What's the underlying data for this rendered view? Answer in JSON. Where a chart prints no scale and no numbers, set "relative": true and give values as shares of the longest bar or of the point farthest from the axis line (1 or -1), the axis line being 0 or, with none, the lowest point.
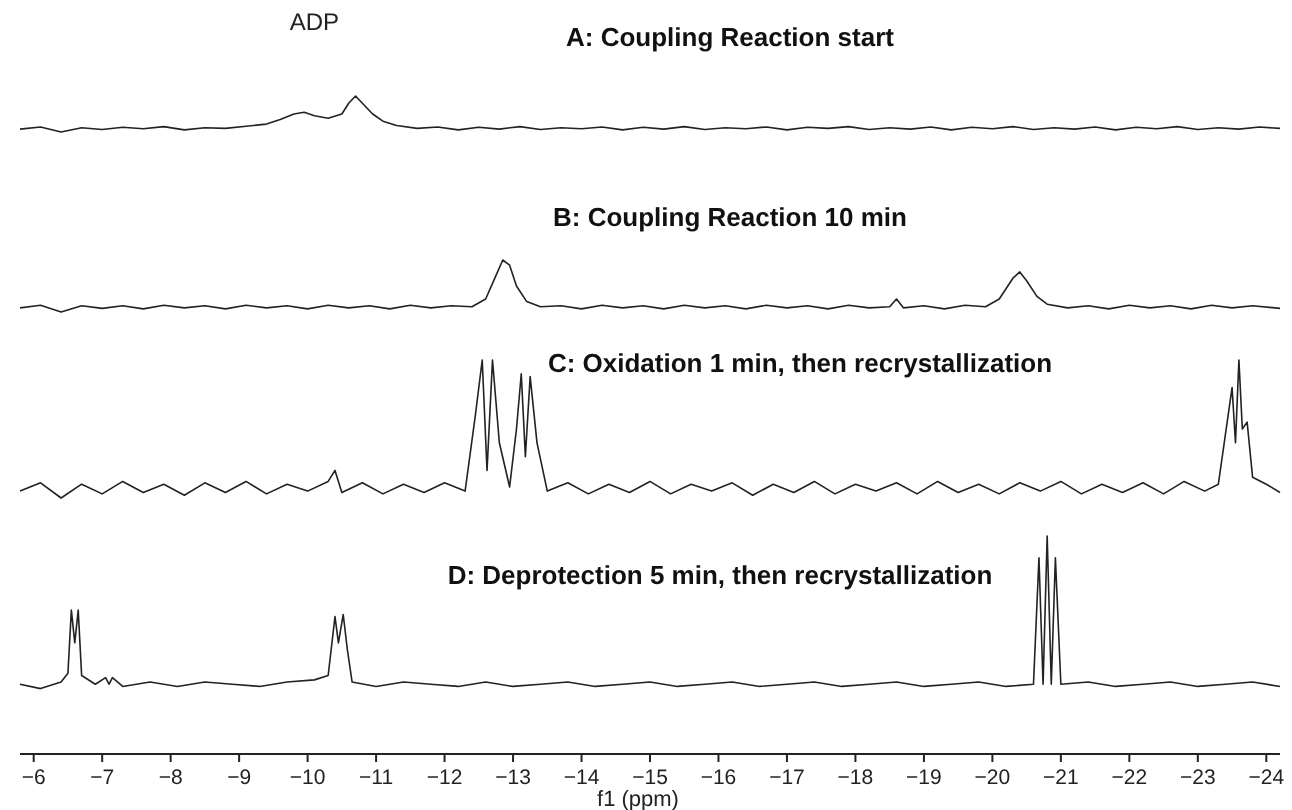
{
  "chart_data": [
    {
      "type": "line",
      "title": "A: Coupling Reaction start",
      "relative": true,
      "xticks": [
        -6,
        -24
      ],
      "tick_labels": false,
      "grid": false,
      "marker": "none",
      "line_style": "solid",
      "annotations": [
        "ADP"
      ],
      "series": [
        {
          "color": "#222222",
          "x": [
            -5.8,
            -6.1,
            -6.4,
            -6.7,
            -7.0,
            -7.3,
            -7.6,
            -7.9,
            -8.2,
            -8.5,
            -8.8,
            -9.1,
            -9.4,
            -9.6,
            -9.8,
            -9.95,
            -10.1,
            -10.3,
            -10.5,
            -10.6,
            -10.7,
            -10.8,
            -10.95,
            -11.1,
            -11.3,
            -11.6,
            -11.9,
            -12.2,
            -12.5,
            -12.8,
            -13.1,
            -13.4,
            -13.7,
            -14.0,
            -14.3,
            -14.6,
            -14.9,
            -15.2,
            -15.5,
            -15.8,
            -16.1,
            -16.4,
            -16.7,
            -17.0,
            -17.3,
            -17.6,
            -17.9,
            -18.2,
            -18.5,
            -18.8,
            -19.1,
            -19.4,
            -19.7,
            -20.0,
            -20.3,
            -20.6,
            -20.9,
            -21.2,
            -21.5,
            -21.8,
            -22.1,
            -22.4,
            -22.7,
            -23.0,
            -23.3,
            -23.6,
            -23.9,
            -24.2
          ],
          "values": [
            0.08,
            0.14,
            0,
            0.12,
            0.07,
            0.13,
            0.09,
            0.15,
            0.06,
            0.12,
            0.1,
            0.16,
            0.22,
            0.35,
            0.5,
            0.55,
            0.45,
            0.38,
            0.5,
            0.8,
            1,
            0.8,
            0.5,
            0.3,
            0.18,
            0.1,
            0.14,
            0.06,
            0.13,
            0.08,
            0.15,
            0.07,
            0.12,
            0.09,
            0.14,
            0.06,
            0.13,
            0.08,
            0.15,
            0.07,
            0.12,
            0.09,
            0.14,
            0.06,
            0.13,
            0.1,
            0.15,
            0.07,
            0.12,
            0.08,
            0.14,
            0.06,
            0.13,
            0.09,
            0.15,
            0.07,
            0.12,
            0.08,
            0.14,
            0.06,
            0.13,
            0.09,
            0.15,
            0.07,
            0.12,
            0.08,
            0.14,
            0.1
          ]
        }
      ]
    },
    {
      "type": "line",
      "title": "B: Coupling Reaction 10 min",
      "relative": true,
      "xticks": [
        -6,
        -24
      ],
      "tick_labels": false,
      "grid": false,
      "marker": "none",
      "line_style": "solid",
      "series": [
        {
          "color": "#222222",
          "x": [
            -5.8,
            -6.1,
            -6.4,
            -6.7,
            -7.0,
            -7.3,
            -7.6,
            -7.9,
            -8.2,
            -8.5,
            -8.8,
            -9.1,
            -9.4,
            -9.7,
            -10.0,
            -10.3,
            -10.6,
            -10.9,
            -11.2,
            -11.5,
            -11.8,
            -12.1,
            -12.4,
            -12.6,
            -12.75,
            -12.85,
            -12.95,
            -13.05,
            -13.2,
            -13.4,
            -13.7,
            -14.0,
            -14.3,
            -14.6,
            -14.9,
            -15.2,
            -15.5,
            -15.8,
            -16.1,
            -16.4,
            -16.7,
            -17.0,
            -17.3,
            -17.6,
            -17.9,
            -18.2,
            -18.5,
            -18.6,
            -18.7,
            -19.0,
            -19.3,
            -19.6,
            -19.9,
            -20.1,
            -20.3,
            -20.4,
            -20.5,
            -20.65,
            -20.8,
            -21.1,
            -21.4,
            -21.7,
            -22.0,
            -22.3,
            -22.6,
            -22.9,
            -23.2,
            -23.5,
            -23.8,
            -24.2
          ],
          "values": [
            0.08,
            0.13,
            0,
            0.12,
            0.07,
            0.12,
            0.06,
            0.13,
            0.08,
            0.12,
            0.06,
            0.13,
            0.08,
            0.12,
            0.06,
            0.13,
            0.08,
            0.12,
            0.06,
            0.13,
            0.08,
            0.12,
            0.1,
            0.25,
            0.7,
            1,
            0.9,
            0.5,
            0.2,
            0.1,
            0.12,
            0.06,
            0.13,
            0.08,
            0.12,
            0.06,
            0.13,
            0.08,
            0.12,
            0.06,
            0.13,
            0.08,
            0.12,
            0.06,
            0.13,
            0.08,
            0.1,
            0.25,
            0.08,
            0.12,
            0.06,
            0.13,
            0.1,
            0.25,
            0.65,
            0.77,
            0.6,
            0.3,
            0.15,
            0.08,
            0.12,
            0.06,
            0.13,
            0.08,
            0.12,
            0.06,
            0.13,
            0.08,
            0.12,
            0.07
          ]
        }
      ]
    },
    {
      "type": "line",
      "title": "C: Oxidation 1 min, then recrystallization",
      "relative": true,
      "xticks": [
        -6,
        -24
      ],
      "tick_labels": false,
      "grid": false,
      "marker": "none",
      "line_style": "solid",
      "series": [
        {
          "color": "#222222",
          "x": [
            -5.8,
            -6.1,
            -6.4,
            -6.7,
            -7.0,
            -7.3,
            -7.6,
            -7.9,
            -8.2,
            -8.5,
            -8.8,
            -9.1,
            -9.4,
            -9.7,
            -10.0,
            -10.3,
            -10.4,
            -10.5,
            -10.8,
            -11.1,
            -11.4,
            -11.7,
            -12.0,
            -12.3,
            -12.45,
            -12.55,
            -12.62,
            -12.7,
            -12.8,
            -12.95,
            -13.05,
            -13.12,
            -13.18,
            -13.25,
            -13.35,
            -13.5,
            -13.8,
            -14.1,
            -14.4,
            -14.7,
            -15.0,
            -15.3,
            -15.6,
            -15.9,
            -16.2,
            -16.5,
            -16.8,
            -17.1,
            -17.4,
            -17.7,
            -18.0,
            -18.3,
            -18.6,
            -18.9,
            -19.2,
            -19.5,
            -19.8,
            -20.1,
            -20.4,
            -20.7,
            -21.0,
            -21.3,
            -21.6,
            -21.9,
            -22.2,
            -22.5,
            -22.8,
            -23.1,
            -23.3,
            -23.4,
            -23.5,
            -23.55,
            -23.6,
            -23.65,
            -23.72,
            -23.8,
            -24.0,
            -24.2
          ],
          "values": [
            0.05,
            0.11,
            0,
            0.1,
            0.03,
            0.12,
            0.04,
            0.1,
            0.02,
            0.11,
            0.04,
            0.12,
            0.03,
            0.1,
            0.05,
            0.12,
            0.2,
            0.04,
            0.11,
            0.03,
            0.1,
            0.04,
            0.11,
            0.05,
            0.6,
            1,
            0.2,
            1,
            0.4,
            0.08,
            0.5,
            0.9,
            0.3,
            0.88,
            0.4,
            0.05,
            0.11,
            0.03,
            0.1,
            0.04,
            0.12,
            0.03,
            0.1,
            0.05,
            0.11,
            0.02,
            0.1,
            0.04,
            0.12,
            0.03,
            0.1,
            0.05,
            0.11,
            0.03,
            0.12,
            0.04,
            0.1,
            0.03,
            0.11,
            0.05,
            0.12,
            0.03,
            0.1,
            0.04,
            0.11,
            0.03,
            0.12,
            0.05,
            0.1,
            0.45,
            0.8,
            0.4,
            1,
            0.5,
            0.55,
            0.15,
            0.1,
            0.04
          ]
        }
      ]
    },
    {
      "type": "line",
      "title": "D: Deprotection 5 min, then recrystallization",
      "xlabel": "f1 (ppm)",
      "relative": true,
      "xlim": [
        -5.8,
        -24.2
      ],
      "xticks": [
        -6,
        -7,
        -8,
        -9,
        -10,
        -11,
        -12,
        -13,
        -14,
        -15,
        -16,
        -17,
        -18,
        -19,
        -20,
        -21,
        -22,
        -23,
        -24
      ],
      "tick_labels": "x",
      "grid": false,
      "marker": "none",
      "line_style": "solid",
      "series": [
        {
          "color": "#222222",
          "x": [
            -5.8,
            -6.1,
            -6.4,
            -6.5,
            -6.55,
            -6.6,
            -6.65,
            -6.7,
            -6.9,
            -7.05,
            -7.1,
            -7.15,
            -7.3,
            -7.7,
            -8.1,
            -8.5,
            -8.9,
            -9.3,
            -9.7,
            -10.1,
            -10.3,
            -10.4,
            -10.45,
            -10.52,
            -10.58,
            -10.65,
            -11.0,
            -11.4,
            -11.8,
            -12.2,
            -12.6,
            -13.0,
            -13.4,
            -13.8,
            -14.2,
            -14.6,
            -15.0,
            -15.4,
            -15.8,
            -16.2,
            -16.6,
            -17.0,
            -17.4,
            -17.8,
            -18.2,
            -18.6,
            -19.0,
            -19.4,
            -19.8,
            -20.2,
            -20.6,
            -20.68,
            -20.74,
            -20.8,
            -20.86,
            -20.92,
            -21.0,
            -21.4,
            -21.8,
            -22.2,
            -22.6,
            -23.0,
            -23.4,
            -23.8,
            -24.2
          ],
          "values": [
            0.32,
            0.3,
            0.33,
            0.37,
            0.66,
            0.51,
            0.66,
            0.36,
            0.32,
            0.35,
            0.32,
            0.35,
            0.31,
            0.33,
            0.31,
            0.33,
            0.32,
            0.31,
            0.33,
            0.34,
            0.36,
            0.63,
            0.51,
            0.64,
            0.48,
            0.33,
            0.31,
            0.33,
            0.32,
            0.31,
            0.33,
            0.31,
            0.32,
            0.33,
            0.31,
            0.32,
            0.33,
            0.31,
            0.32,
            0.33,
            0.31,
            0.32,
            0.33,
            0.31,
            0.32,
            0.33,
            0.31,
            0.32,
            0.33,
            0.31,
            0.32,
            0.9,
            0.32,
            1,
            0.32,
            0.9,
            0.32,
            0.33,
            0.31,
            0.32,
            0.33,
            0.31,
            0.32,
            0.33,
            0.31
          ]
        }
      ]
    }
  ]
}
